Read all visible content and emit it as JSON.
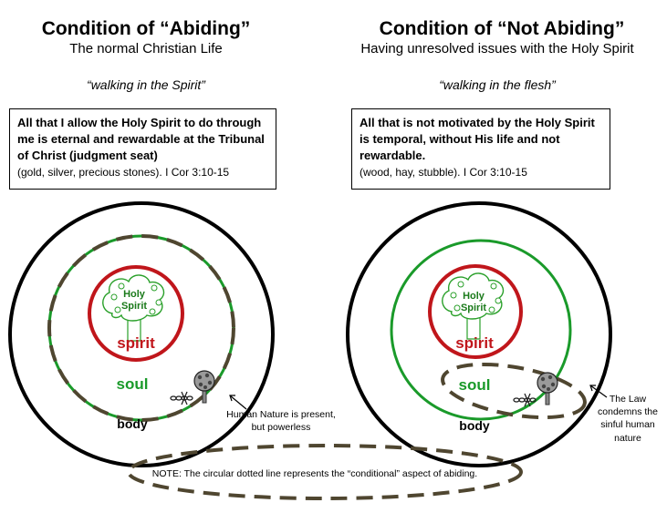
{
  "left": {
    "title": "Condition of “Abiding”",
    "subtitle": "The normal Christian Life",
    "motto": "“walking in the Spirit”",
    "box_bold": "All that I allow the Holy Spirit to do through me is eternal and rewardable at the Tribunal of Christ (judgment seat)",
    "box_ref": "(gold, silver, precious stones).   I Cor 3:10-15",
    "tree_line1": "Holy",
    "tree_line2": "Spirit",
    "spirit_label": "spirit",
    "soul_label": "soul",
    "body_label": "body",
    "annotation_line1": "Human Nature is present,",
    "annotation_line2": "but powerless"
  },
  "right": {
    "title": "Condition of “Not Abiding”",
    "subtitle": "Having unresolved issues with the Holy Spirit",
    "motto": "“walking in the flesh”",
    "box_bold": "All that is not motivated by the Holy Spirit is temporal, without His life and not rewardable.",
    "box_ref": "(wood, hay, stubble).   I Cor 3:10-15",
    "tree_line1": "Holy",
    "tree_line2": "Spirit",
    "spirit_label": "spirit",
    "soul_label": "soul",
    "body_label": "body",
    "annotation_line1": "The Law",
    "annotation_line2": "condemns the",
    "annotation_line3": "sinful human",
    "annotation_line4": "nature"
  },
  "note": "NOTE:  The circular dotted line represents the “conditional” aspect of abiding.",
  "colors": {
    "spirit_red": "#c0161b",
    "soul_green": "#1a9a2a",
    "dotted_brown": "#4f4630",
    "tree_green": "#2aa02a"
  }
}
